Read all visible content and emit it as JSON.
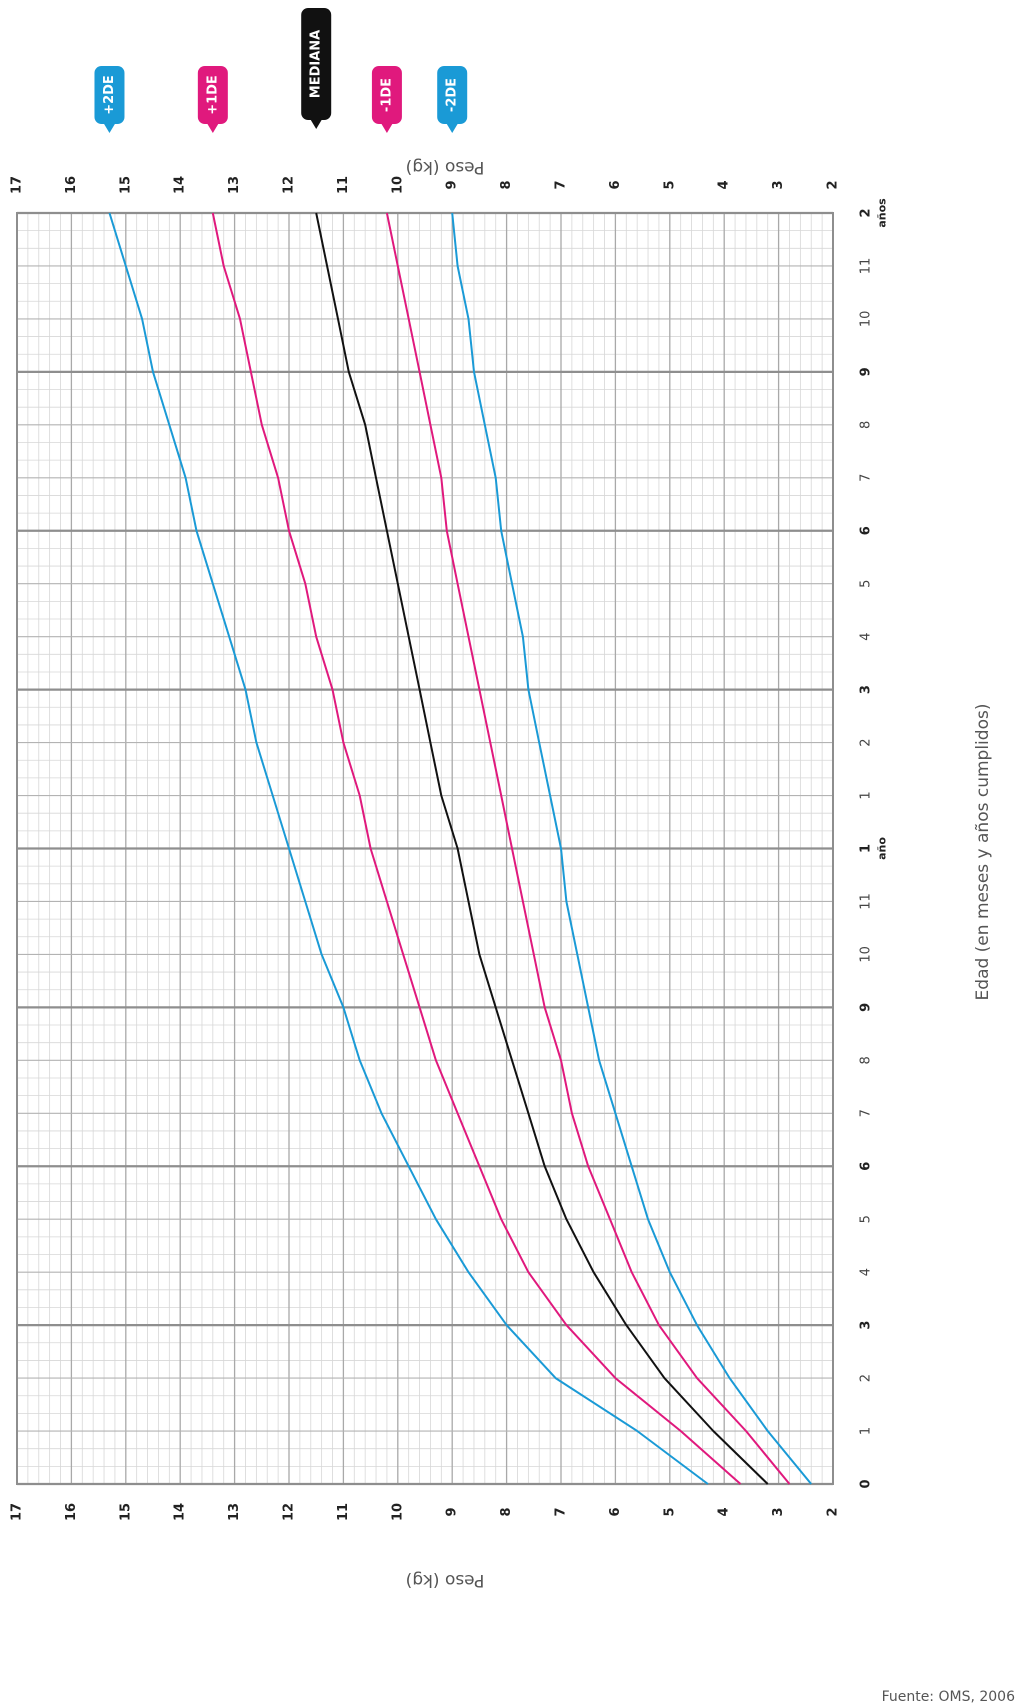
{
  "chart_data": {
    "type": "line",
    "x_axis_title": "Edad (en meses y años cumplidos)",
    "y_axis_title": "Peso (kg)",
    "x_tick_labels": [
      "0",
      "1",
      "2",
      "3",
      "4",
      "5",
      "6",
      "7",
      "8",
      "9",
      "10",
      "11",
      "1",
      "1",
      "2",
      "3",
      "4",
      "5",
      "6",
      "7",
      "8",
      "9",
      "10",
      "11",
      "2"
    ],
    "x_year_labels": {
      "12": "año",
      "24": "años"
    },
    "x_range": [
      0,
      24
    ],
    "y_range": [
      2,
      17
    ],
    "y_tick_labels": [
      "2",
      "3",
      "4",
      "5",
      "6",
      "7",
      "8",
      "9",
      "10",
      "11",
      "12",
      "13",
      "14",
      "15",
      "16",
      "17"
    ],
    "source": "Fuente: OMS, 2006",
    "x_months": [
      0,
      1,
      2,
      3,
      4,
      5,
      6,
      7,
      8,
      9,
      10,
      11,
      12,
      13,
      14,
      15,
      16,
      17,
      18,
      19,
      20,
      21,
      22,
      23,
      24
    ],
    "series": [
      {
        "name": "+2DE",
        "color": "#1a9ad6",
        "values": [
          4.3,
          5.6,
          7.1,
          8.0,
          8.7,
          9.3,
          9.8,
          10.3,
          10.7,
          11.0,
          11.4,
          11.7,
          12.0,
          12.3,
          12.6,
          12.8,
          13.1,
          13.4,
          13.7,
          13.9,
          14.2,
          14.5,
          14.7,
          15.0,
          15.3
        ]
      },
      {
        "name": "+1DE",
        "color": "#e0197d",
        "values": [
          3.7,
          4.8,
          6.0,
          6.9,
          7.6,
          8.1,
          8.5,
          8.9,
          9.3,
          9.6,
          9.9,
          10.2,
          10.5,
          10.7,
          11.0,
          11.2,
          11.5,
          11.7,
          12.0,
          12.2,
          12.5,
          12.7,
          12.9,
          13.2,
          13.4
        ]
      },
      {
        "name": "MEDIANA",
        "color": "#111111",
        "values": [
          3.2,
          4.2,
          5.1,
          5.8,
          6.4,
          6.9,
          7.3,
          7.6,
          7.9,
          8.2,
          8.5,
          8.7,
          8.9,
          9.2,
          9.4,
          9.6,
          9.8,
          10.0,
          10.2,
          10.4,
          10.6,
          10.9,
          11.1,
          11.3,
          11.5
        ]
      },
      {
        "name": "-1DE",
        "color": "#e0197d",
        "values": [
          2.8,
          3.6,
          4.5,
          5.2,
          5.7,
          6.1,
          6.5,
          6.8,
          7.0,
          7.3,
          7.5,
          7.7,
          7.9,
          8.1,
          8.3,
          8.5,
          8.7,
          8.9,
          9.1,
          9.2,
          9.4,
          9.6,
          9.8,
          10.0,
          10.2
        ]
      },
      {
        "name": "-2DE",
        "color": "#1a9ad6",
        "values": [
          2.4,
          3.2,
          3.9,
          4.5,
          5.0,
          5.4,
          5.7,
          6.0,
          6.3,
          6.5,
          6.7,
          6.9,
          7.0,
          7.2,
          7.4,
          7.6,
          7.7,
          7.9,
          8.1,
          8.2,
          8.4,
          8.6,
          8.7,
          8.9,
          9.0
        ]
      }
    ]
  }
}
